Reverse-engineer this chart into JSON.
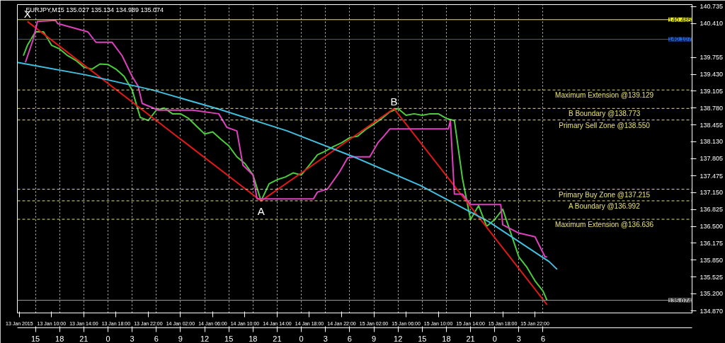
{
  "chart_data": {
    "type": "line",
    "title": "EURJPY,M15  135.027 135.134 134.989 135.074",
    "xlim": [
      "2015-01-13T05:45",
      "2015-01-16T17:30"
    ],
    "ylim": [
      134.83,
      140.775
    ],
    "yticks": [
      {
        "value": 140.735,
        "label": "140.735"
      },
      {
        "value": 140.41,
        "label": "140.410"
      },
      {
        "value": 139.755,
        "label": "139.755"
      },
      {
        "value": 139.43,
        "label": "139.430"
      },
      {
        "value": 139.105,
        "label": "139.105"
      },
      {
        "value": 138.78,
        "label": "138.780"
      },
      {
        "value": 138.455,
        "label": "138.455"
      },
      {
        "value": 138.13,
        "label": "138.130"
      },
      {
        "value": 137.805,
        "label": "137.805"
      },
      {
        "value": 137.475,
        "label": "137.475"
      },
      {
        "value": 137.15,
        "label": "137.150"
      },
      {
        "value": 136.825,
        "label": "136.825"
      },
      {
        "value": 136.5,
        "label": "136.500"
      },
      {
        "value": 136.175,
        "label": "136.175"
      },
      {
        "value": 135.85,
        "label": "135.850"
      },
      {
        "value": 135.525,
        "label": "135.525"
      },
      {
        "value": 135.2,
        "label": "135.200"
      },
      {
        "value": 134.87,
        "label": "134.870"
      }
    ],
    "xticks": [
      {
        "value": "2015-01-13T06:00",
        "label": "13 Jan 2015"
      },
      {
        "value": "2015-01-13T10:00",
        "label": "13 Jan 10:00"
      },
      {
        "value": "2015-01-13T14:00",
        "label": "13 Jan 14:00"
      },
      {
        "value": "2015-01-13T18:00",
        "label": "13 Jan 18:00"
      },
      {
        "value": "2015-01-13T22:00",
        "label": "13 Jan 22:00"
      },
      {
        "value": "2015-01-14T02:00",
        "label": "14 Jan 02:00"
      },
      {
        "value": "2015-01-14T06:00",
        "label": "14 Jan 06:00"
      },
      {
        "value": "2015-01-14T10:00",
        "label": "14 Jan 10:00"
      },
      {
        "value": "2015-01-14T14:00",
        "label": "14 Jan 14:00"
      },
      {
        "value": "2015-01-14T18:00",
        "label": "14 Jan 18:00"
      },
      {
        "value": "2015-01-14T22:00",
        "label": "14 Jan 22:00"
      },
      {
        "value": "2015-01-15T02:00",
        "label": "15 Jan 02:00"
      },
      {
        "value": "2015-01-15T06:00",
        "label": "15 Jan 06:00"
      },
      {
        "value": "2015-01-15T10:00",
        "label": "15 Jan 10:00"
      },
      {
        "value": "2015-01-15T14:00",
        "label": "15 Jan 14:00"
      },
      {
        "value": "2015-01-15T18:00",
        "label": "15 Jan 18:00"
      },
      {
        "value": "2015-01-15T22:00",
        "label": "15 Jan 22:00"
      }
    ],
    "x2lim": [
      "2015-01-13T05:45",
      "2015-01-16T17:30"
    ],
    "x2ticks": [
      {
        "value": "2015-01-13T08:00",
        "label": "15"
      },
      {
        "value": "2015-01-13T11:00",
        "label": "18"
      },
      {
        "value": "2015-01-13T14:00",
        "label": "21"
      },
      {
        "value": "2015-01-13T17:00",
        "label": "0"
      },
      {
        "value": "2015-01-13T20:00",
        "label": "3"
      },
      {
        "value": "2015-01-13T23:00",
        "label": "6"
      },
      {
        "value": "2015-01-14T02:00",
        "label": "9"
      },
      {
        "value": "2015-01-14T05:00",
        "label": "12"
      },
      {
        "value": "2015-01-14T08:00",
        "label": "15"
      },
      {
        "value": "2015-01-14T11:00",
        "label": "18"
      },
      {
        "value": "2015-01-14T14:00",
        "label": "21"
      },
      {
        "value": "2015-01-14T17:00",
        "label": "0"
      },
      {
        "value": "2015-01-14T20:00",
        "label": "3"
      },
      {
        "value": "2015-01-14T23:00",
        "label": "6"
      },
      {
        "value": "2015-01-15T02:00",
        "label": "9"
      },
      {
        "value": "2015-01-15T05:00",
        "label": "12"
      },
      {
        "value": "2015-01-15T08:00",
        "label": "15"
      },
      {
        "value": "2015-01-15T11:00",
        "label": "18"
      },
      {
        "value": "2015-01-15T14:00",
        "label": "21"
      },
      {
        "value": "2015-01-15T17:00",
        "label": "0"
      },
      {
        "value": "2015-01-15T20:00",
        "label": "3"
      },
      {
        "value": "2015-01-15T23:00",
        "label": "6"
      }
    ],
    "grid": "x",
    "marker": "none",
    "line_style": "solid",
    "series": [
      {
        "color": "#4ccc3c",
        "x": [
          "2015-01-13T06:30",
          "2015-01-13T07:00",
          "2015-01-13T08:00",
          "2015-01-13T09:00",
          "2015-01-13T10:00",
          "2015-01-13T11:00",
          "2015-01-13T12:00",
          "2015-01-13T13:00",
          "2015-01-13T14:00",
          "2015-01-13T15:00",
          "2015-01-13T16:00",
          "2015-01-13T17:00",
          "2015-01-13T18:00",
          "2015-01-13T19:00",
          "2015-01-13T20:00",
          "2015-01-13T21:00",
          "2015-01-13T22:00",
          "2015-01-13T23:00",
          "2015-01-14T00:00",
          "2015-01-14T01:00",
          "2015-01-14T02:00",
          "2015-01-14T03:00",
          "2015-01-14T04:00",
          "2015-01-14T05:00",
          "2015-01-14T06:00",
          "2015-01-14T07:00",
          "2015-01-14T08:00",
          "2015-01-14T09:00",
          "2015-01-14T10:00",
          "2015-01-14T11:00",
          "2015-01-14T12:00",
          "2015-01-14T13:00",
          "2015-01-14T14:00",
          "2015-01-14T15:00",
          "2015-01-14T16:00",
          "2015-01-14T17:00",
          "2015-01-14T18:00",
          "2015-01-14T19:00",
          "2015-01-14T20:00",
          "2015-01-14T21:00",
          "2015-01-14T22:00",
          "2015-01-14T23:00",
          "2015-01-15T00:00",
          "2015-01-15T01:00",
          "2015-01-15T02:00",
          "2015-01-15T03:00",
          "2015-01-15T04:00",
          "2015-01-15T05:00",
          "2015-01-15T06:00",
          "2015-01-15T07:00",
          "2015-01-15T08:00",
          "2015-01-15T09:00",
          "2015-01-15T10:00",
          "2015-01-15T11:00",
          "2015-01-15T12:00",
          "2015-01-15T13:00",
          "2015-01-15T14:00",
          "2015-01-15T15:00",
          "2015-01-15T16:00",
          "2015-01-15T17:00",
          "2015-01-15T18:00",
          "2015-01-15T19:00",
          "2015-01-15T20:00",
          "2015-01-15T21:00",
          "2015-01-15T22:00",
          "2015-01-15T23:00",
          "2015-01-15T23:30"
        ],
        "values": [
          139.79,
          139.99,
          140.25,
          140.25,
          139.99,
          139.92,
          139.79,
          139.7,
          139.57,
          139.53,
          139.63,
          139.62,
          139.53,
          139.39,
          139.13,
          138.6,
          138.54,
          138.74,
          138.78,
          138.67,
          138.67,
          138.58,
          138.43,
          138.28,
          138.32,
          138.18,
          138.05,
          137.84,
          137.71,
          137.49,
          136.99,
          137.32,
          137.4,
          137.45,
          137.53,
          137.49,
          137.68,
          137.88,
          137.95,
          138.04,
          138.11,
          138.21,
          138.24,
          138.37,
          138.47,
          138.58,
          138.71,
          138.77,
          138.64,
          138.67,
          138.64,
          138.67,
          138.67,
          138.58,
          138.54,
          137.42,
          136.63,
          136.9,
          136.5,
          136.63,
          136.83,
          136.37,
          135.91,
          135.71,
          135.45,
          135.25,
          135.07
        ]
      },
      {
        "color": "#e01818",
        "x": [
          "2015-01-13T07:00",
          "2015-01-14T12:00",
          "2015-01-15T04:30",
          "2015-01-15T23:30"
        ],
        "values": [
          140.45,
          136.99,
          138.77,
          134.99
        ]
      },
      {
        "color": "#e040c0",
        "x": [
          "2015-01-13T06:45",
          "2015-01-13T07:45",
          "2015-01-13T08:15",
          "2015-01-13T10:30",
          "2015-01-13T10:45",
          "2015-01-13T14:30",
          "2015-01-13T15:30",
          "2015-01-13T17:30",
          "2015-01-13T18:45",
          "2015-01-13T20:00",
          "2015-01-13T20:45",
          "2015-01-13T21:15",
          "2015-01-13T23:15",
          "2015-01-14T03:30",
          "2015-01-14T06:45",
          "2015-01-14T07:45",
          "2015-01-14T09:00",
          "2015-01-14T09:45",
          "2015-01-14T11:00",
          "2015-01-14T11:30",
          "2015-01-14T18:30",
          "2015-01-14T19:00",
          "2015-01-14T20:15",
          "2015-01-14T21:45",
          "2015-01-14T22:45",
          "2015-01-14T23:30",
          "2015-01-15T01:30",
          "2015-01-15T02:30",
          "2015-01-15T03:15",
          "2015-01-15T04:00",
          "2015-01-15T11:15",
          "2015-01-15T11:30",
          "2015-01-15T12:00",
          "2015-01-15T13:00",
          "2015-01-15T14:00",
          "2015-01-15T17:45",
          "2015-01-15T18:00",
          "2015-01-15T20:00",
          "2015-01-15T22:00",
          "2015-01-15T23:15",
          "2015-01-15T23:30"
        ],
        "values": [
          139.66,
          140.12,
          140.45,
          140.47,
          140.41,
          140.25,
          140.05,
          140.05,
          139.79,
          139.39,
          139.2,
          138.87,
          138.74,
          138.74,
          138.67,
          138.41,
          138.34,
          137.68,
          137.49,
          137.03,
          137.03,
          137.16,
          137.22,
          137.55,
          137.82,
          137.84,
          137.84,
          138.11,
          138.24,
          138.38,
          138.38,
          138.54,
          137.12,
          137.12,
          136.92,
          136.92,
          136.53,
          136.37,
          136.3,
          135.91,
          135.91
        ]
      },
      {
        "color": "#40c0e0",
        "x": [
          "2015-01-13T05:45",
          "2015-01-13T14:15",
          "2015-01-13T22:30",
          "2015-01-14T06:45",
          "2015-01-14T15:15",
          "2015-01-14T23:30",
          "2015-01-15T07:45",
          "2015-01-15T16:15",
          "2015-01-15T23:45",
          "2015-01-16T00:45"
        ],
        "values": [
          139.66,
          139.42,
          139.13,
          138.76,
          138.34,
          137.84,
          137.29,
          136.59,
          135.82,
          135.67
        ]
      }
    ],
    "ref_lines": [
      {
        "axis": "y",
        "value": 140.485,
        "label": "140.485",
        "color": "#f0f000",
        "line_style": "solid"
      },
      {
        "axis": "y",
        "value": 140.107,
        "label": "140.107",
        "color": "#2060d0",
        "line_style": "solid"
      },
      {
        "axis": "y",
        "value": 135.074,
        "label": "135.074",
        "color": "#a0a0a0",
        "line_style": "solid"
      },
      {
        "axis": "y",
        "value": 139.129,
        "label": "Maximum Extension @139.129",
        "color": "#e8e070",
        "line_style": "dashed"
      },
      {
        "axis": "y",
        "value": 138.773,
        "label": "B Boundary @138.773",
        "color": "#e8e070",
        "line_style": "dashed"
      },
      {
        "axis": "y",
        "value": 138.55,
        "label": "Primary Sell Zone @138.550",
        "color": "#e8e070",
        "line_style": "dashed"
      },
      {
        "axis": "y",
        "value": 137.215,
        "label": "Primary Buy Zone @137.215",
        "color": "#e8e070",
        "line_style": "dashed"
      },
      {
        "axis": "y",
        "value": 136.992,
        "label": "A Boundary @136.992",
        "color": "#e8e070",
        "line_style": "dashed"
      },
      {
        "axis": "y",
        "value": 136.636,
        "label": "Maximum Extension @136.636",
        "color": "#e8e070",
        "line_style": "dashed"
      }
    ],
    "annotations": [
      {
        "text": "X",
        "x": "2015-01-13T07:00",
        "y": 140.45
      },
      {
        "text": "A",
        "x": "2015-01-14T12:00",
        "y": 136.99
      },
      {
        "text": "B",
        "x": "2015-01-15T04:30",
        "y": 138.77
      }
    ]
  }
}
